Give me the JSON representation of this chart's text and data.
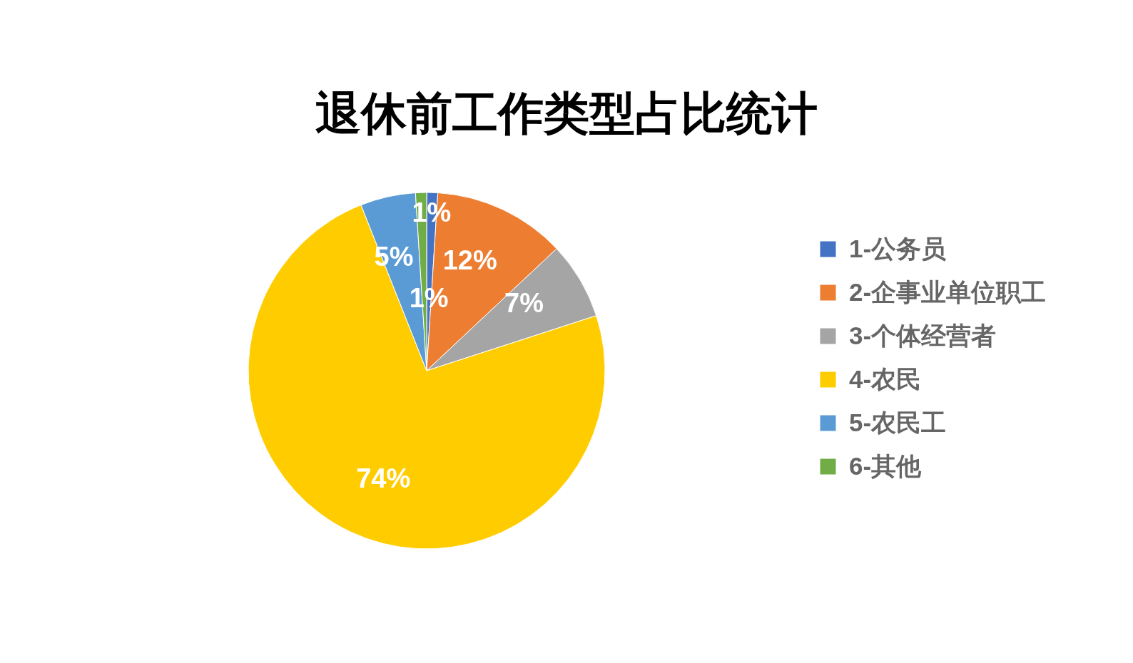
{
  "chart_data": {
    "type": "pie",
    "title": "退休前工作类型占比统计",
    "categories": [
      "1-公务员",
      "2-企事业单位职工",
      "3-个体经营者",
      "4-农民",
      "5-农民工",
      "6-其他"
    ],
    "values": [
      1,
      12,
      7,
      74,
      5,
      1
    ],
    "colors": [
      "#4472c4",
      "#ed7d31",
      "#a5a5a5",
      "#ffcc00",
      "#5b9bd5",
      "#70ad47"
    ],
    "value_labels": [
      "1%",
      "12%",
      "7%",
      "74%",
      "5%",
      "1%"
    ],
    "legend": "right"
  }
}
